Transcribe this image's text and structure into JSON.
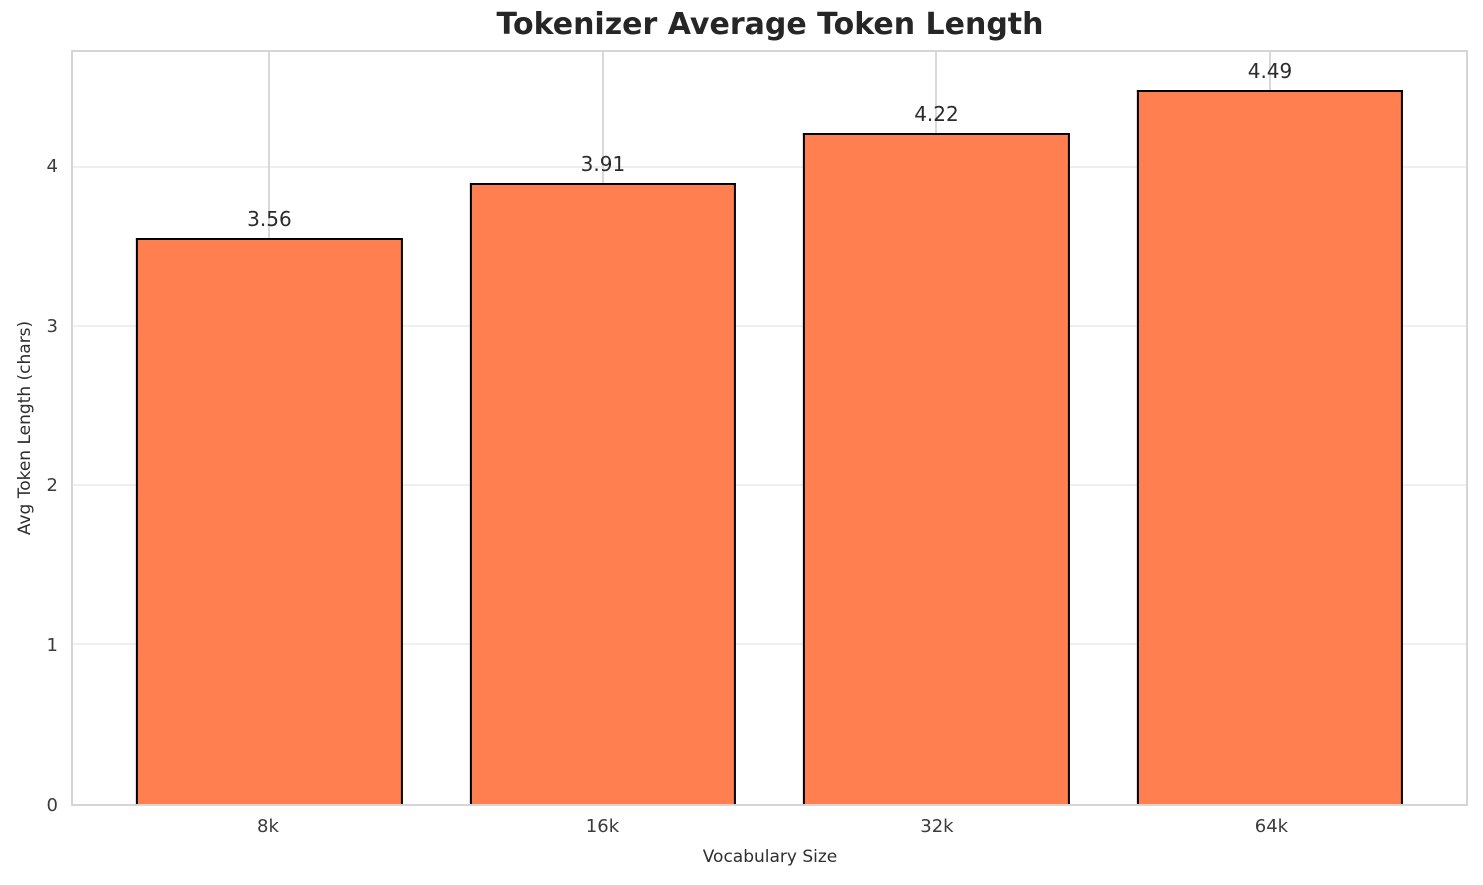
{
  "chart_data": {
    "type": "bar",
    "title": "Tokenizer Average Token Length",
    "xlabel": "Vocabulary Size",
    "ylabel": "Avg Token Length (chars)",
    "categories": [
      "8k",
      "16k",
      "32k",
      "64k"
    ],
    "values": [
      3.56,
      3.91,
      4.22,
      4.49
    ],
    "value_labels": [
      "3.56",
      "3.91",
      "4.22",
      "4.49"
    ],
    "yticks": [
      0,
      1,
      2,
      3,
      4
    ],
    "ylim": [
      0,
      4.732
    ],
    "grid": true,
    "legend": false,
    "colors": {
      "bar_fill": "#FF7F50",
      "bar_edge": "#000000",
      "plot_border": "#d5d5d5",
      "vgrid": "#d9d9d9",
      "hgrid": "#efefef",
      "title_text": "#262626",
      "tick_text": "#3b3b3b"
    }
  }
}
